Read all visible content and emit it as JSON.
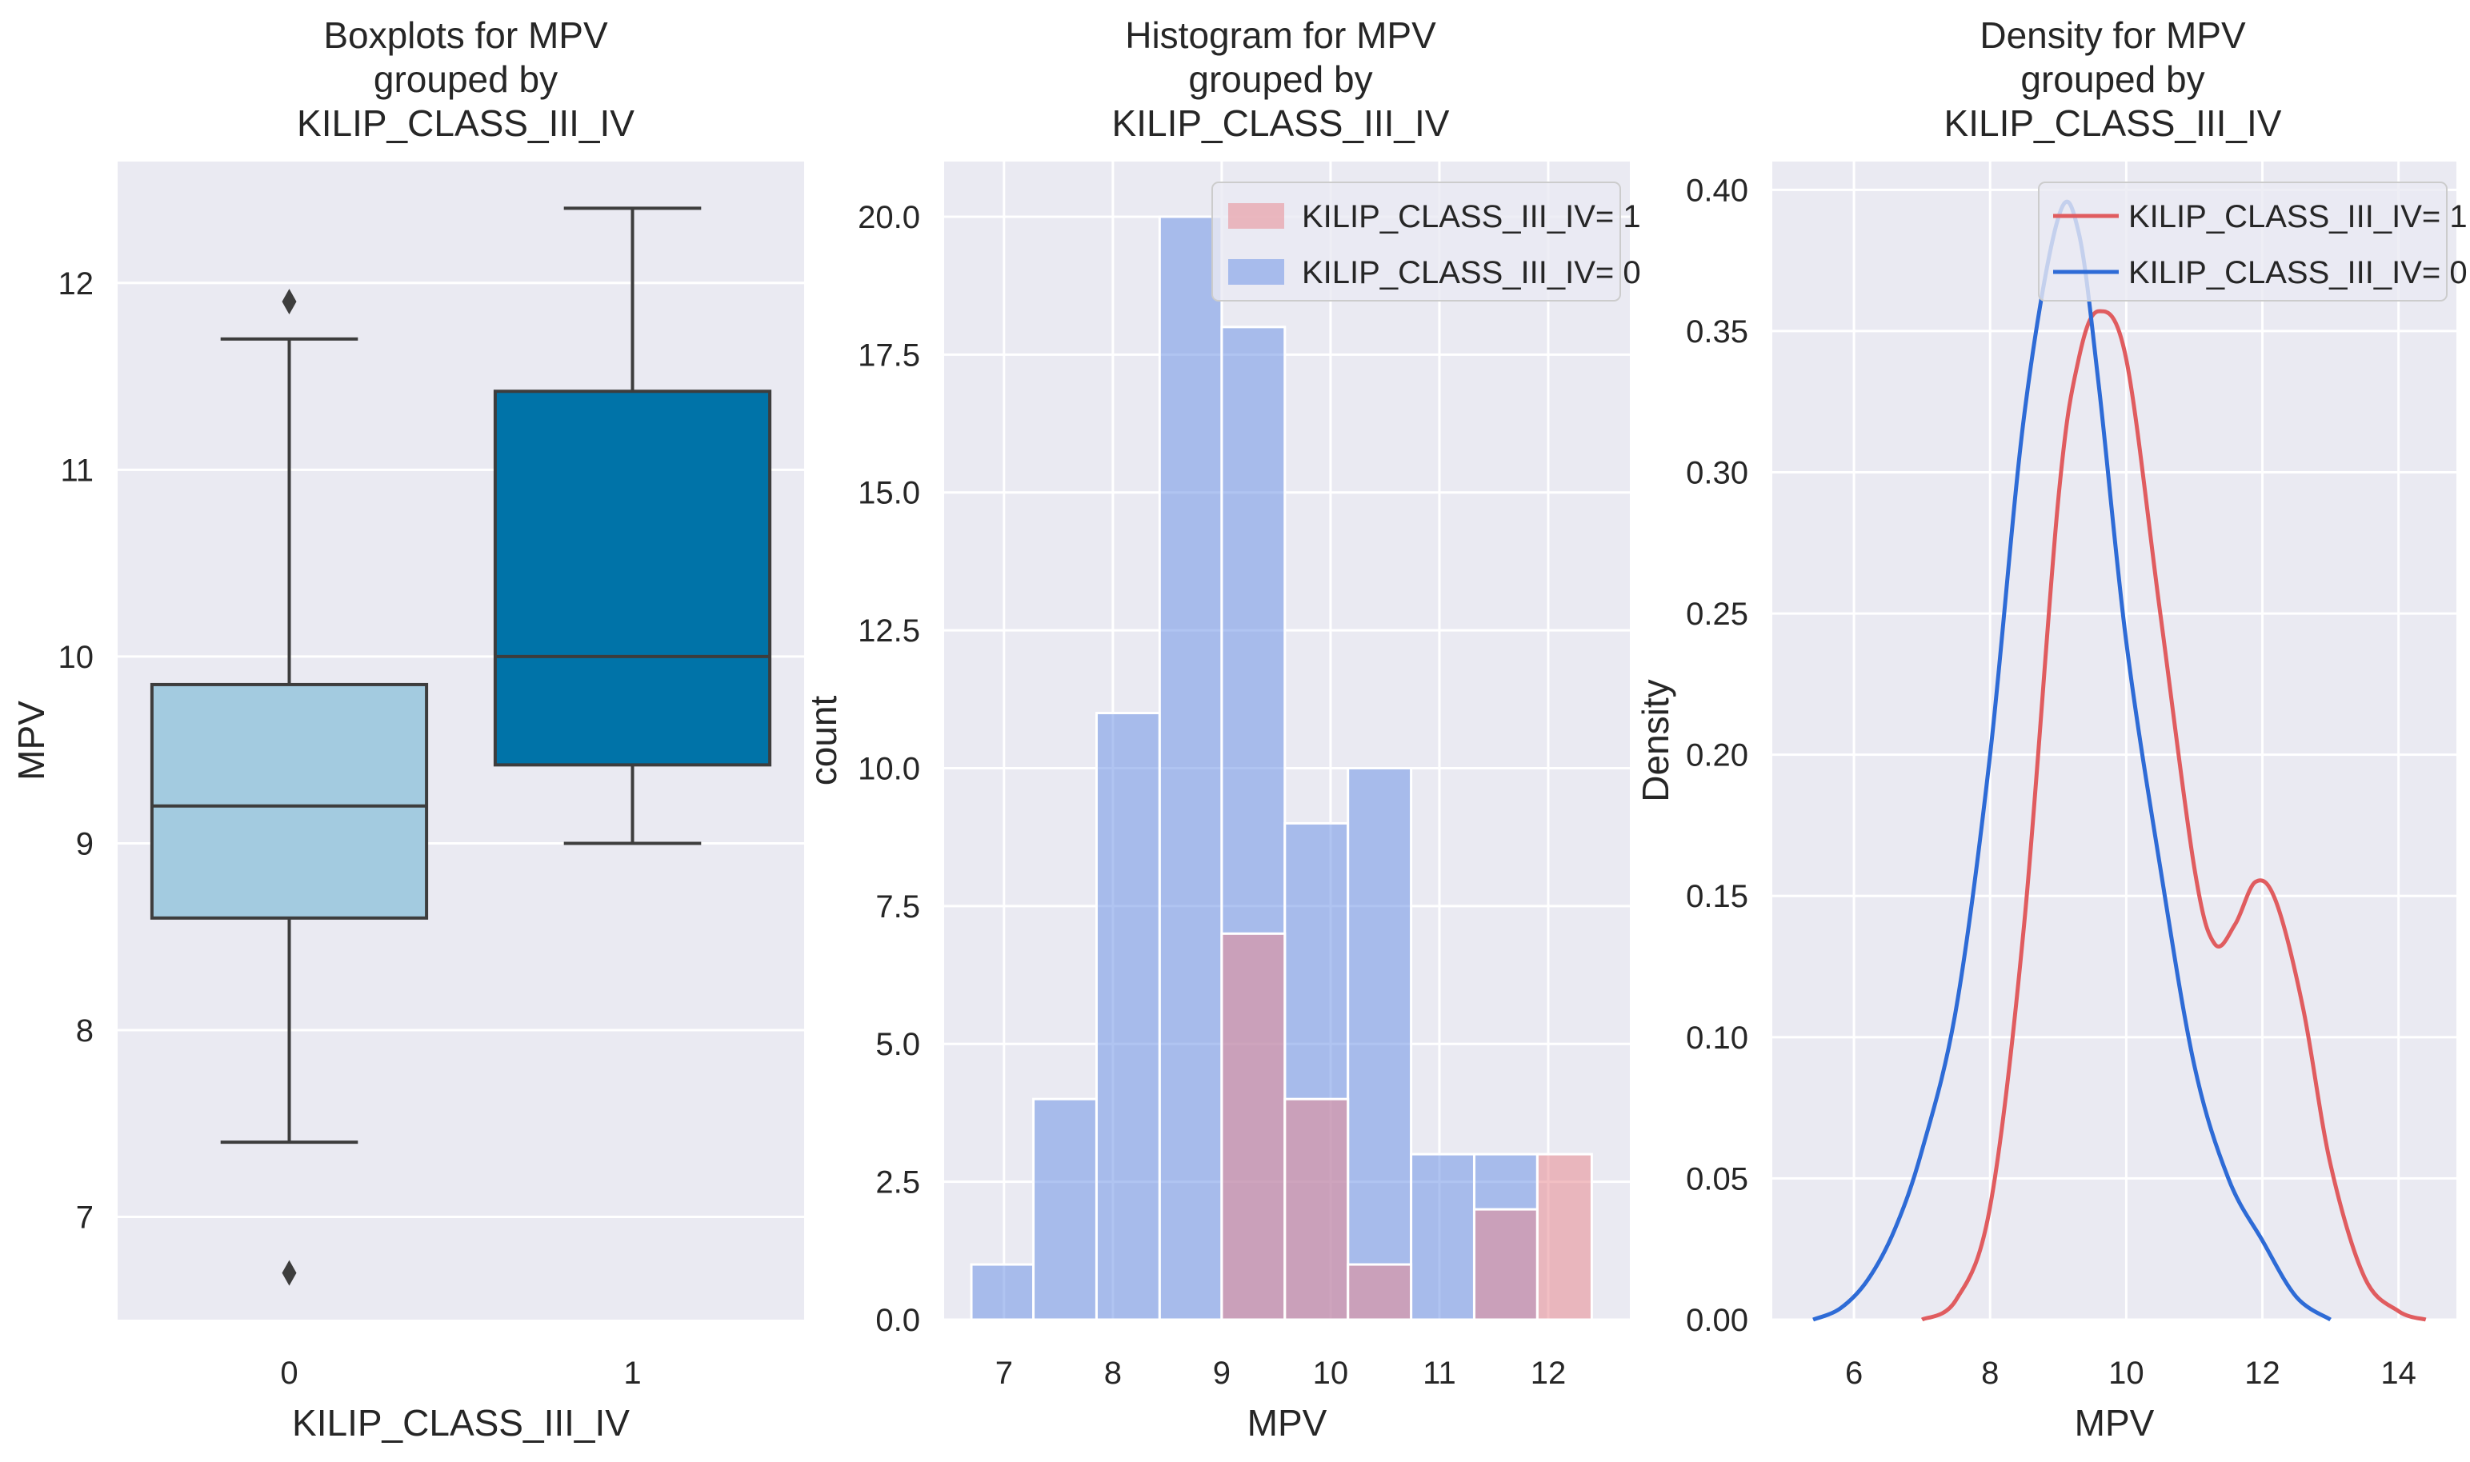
{
  "chart_data": [
    {
      "type": "box",
      "title": "Boxplots for MPV\ngrouped by\nKILIP_CLASS_III_IV",
      "xlabel": "KILIP_CLASS_III_IV",
      "ylabel": "MPV",
      "categories": [
        "0",
        "1"
      ],
      "yticks": [
        7,
        8,
        9,
        10,
        11,
        12
      ],
      "ylim": [
        6.45,
        12.65
      ],
      "boxes": [
        {
          "category": "0",
          "whisker_low": 7.4,
          "q1": 8.6,
          "median": 9.2,
          "q3": 9.85,
          "whisker_high": 11.7,
          "outliers": [
            11.9,
            6.7
          ],
          "color": "#a3cbe0"
        },
        {
          "category": "1",
          "whisker_low": 9.0,
          "q1": 9.42,
          "median": 10.0,
          "q3": 11.42,
          "whisker_high": 12.4,
          "outliers": [],
          "color": "#0073a8"
        }
      ]
    },
    {
      "type": "bar",
      "title": "Histogram for MPV\ngrouped by\nKILIP_CLASS_III_IV",
      "xlabel": "MPV",
      "ylabel": "count",
      "xticks": [
        7,
        8,
        9,
        10,
        11,
        12
      ],
      "yticks": [
        0.0,
        2.5,
        5.0,
        7.5,
        10.0,
        12.5,
        15.0,
        17.5,
        20.0
      ],
      "ytick_labels": [
        "0.0",
        "2.5",
        "5.0",
        "7.5",
        "10.0",
        "12.5",
        "15.0",
        "17.5",
        "20.0"
      ],
      "xlim": [
        6.45,
        12.75
      ],
      "ylim": [
        0,
        21
      ],
      "legend": "top-right",
      "series": [
        {
          "name": "KILIP_CLASS_III_IV= 1",
          "color": "#e88a92",
          "bins": [
            [
              9.0,
              9.58,
              7
            ],
            [
              9.58,
              10.16,
              4
            ],
            [
              10.16,
              10.74,
              1
            ],
            [
              11.32,
              11.9,
              2
            ],
            [
              11.9,
              12.4,
              3
            ]
          ]
        },
        {
          "name": "KILIP_CLASS_III_IV= 0",
          "color": "#6f93e6",
          "bins": [
            [
              6.7,
              7.27,
              1
            ],
            [
              7.27,
              7.85,
              4
            ],
            [
              7.85,
              8.43,
              11
            ],
            [
              8.43,
              9.0,
              20
            ],
            [
              9.0,
              9.58,
              18
            ],
            [
              9.58,
              10.16,
              9
            ],
            [
              10.16,
              10.74,
              10
            ],
            [
              10.74,
              11.32,
              3
            ],
            [
              11.32,
              11.9,
              3
            ]
          ]
        }
      ]
    },
    {
      "type": "line",
      "title": "Density for MPV\ngrouped by\nKILIP_CLASS_III_IV",
      "xlabel": "MPV",
      "ylabel": "Density",
      "xticks": [
        6,
        8,
        10,
        12,
        14
      ],
      "yticks": [
        0.0,
        0.05,
        0.1,
        0.15,
        0.2,
        0.25,
        0.3,
        0.35,
        0.4
      ],
      "ytick_labels": [
        "0.00",
        "0.05",
        "0.10",
        "0.15",
        "0.20",
        "0.25",
        "0.30",
        "0.35",
        "0.40"
      ],
      "xlim": [
        4.8,
        14.85
      ],
      "ylim": [
        0,
        0.41
      ],
      "legend": "top-right",
      "series": [
        {
          "name": "KILIP_CLASS_III_IV= 1",
          "color": "#e05c5f",
          "x": [
            7.0,
            7.5,
            8.0,
            8.5,
            9.0,
            9.3,
            9.6,
            10.0,
            10.5,
            11.0,
            11.3,
            11.6,
            11.9,
            12.2,
            12.6,
            13.0,
            13.5,
            14.0,
            14.4
          ],
          "y": [
            0.0,
            0.007,
            0.04,
            0.14,
            0.29,
            0.34,
            0.357,
            0.34,
            0.25,
            0.16,
            0.133,
            0.14,
            0.155,
            0.148,
            0.11,
            0.055,
            0.015,
            0.003,
            0.0
          ]
        },
        {
          "name": "KILIP_CLASS_III_IV= 0",
          "color": "#2e6bd6",
          "x": [
            5.4,
            5.8,
            6.2,
            6.6,
            7.0,
            7.5,
            8.0,
            8.5,
            9.0,
            9.3,
            9.6,
            10.0,
            10.5,
            11.0,
            11.5,
            12.0,
            12.5,
            13.0
          ],
          "y": [
            0.0,
            0.004,
            0.014,
            0.032,
            0.06,
            0.11,
            0.2,
            0.32,
            0.39,
            0.385,
            0.33,
            0.24,
            0.16,
            0.09,
            0.05,
            0.028,
            0.008,
            0.0
          ]
        }
      ]
    }
  ]
}
